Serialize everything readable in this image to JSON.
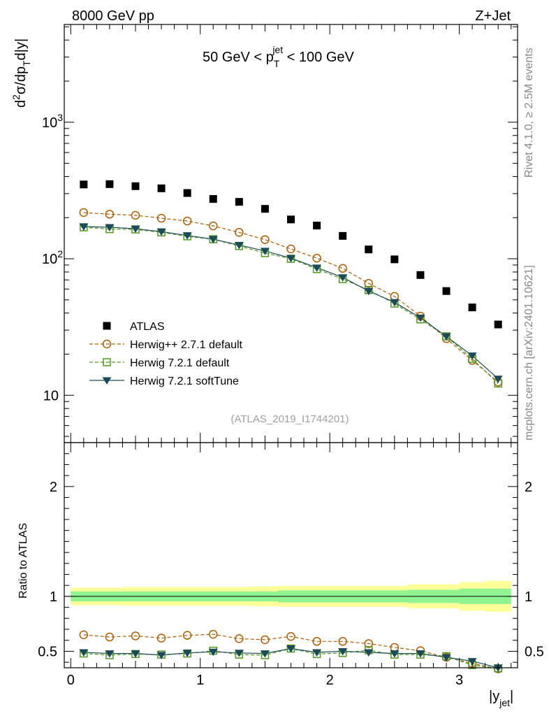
{
  "header": {
    "left_label": "8000 GeV pp",
    "right_label": "Z+Jet"
  },
  "side_labels": {
    "rivet": "Rivet 4.1.0, ≥ 2.5M events",
    "mcplots": "mcplots.cern.ch [arXiv:2401.10621]"
  },
  "chart_data": [
    {
      "type": "scatter",
      "panel": "main",
      "title": "50 GeV < p_T^jet < 100 GeV",
      "title_parts": {
        "pre": "50 GeV < p",
        "sub": "T",
        "sup": "jet",
        "post": " < 100 GeV"
      },
      "ylabel": "d²σ/dp_T d|y|",
      "ylabel_parts": {
        "d1": "d",
        "sup2": "2",
        "mid": "σ/dp",
        "subT": "T",
        "tail": "d|y|"
      },
      "yscale": "log",
      "ylim": [
        4.5,
        5200
      ],
      "xlim": [
        -0.05,
        3.45
      ],
      "y_ticks": [
        {
          "value": 10,
          "label": "10"
        },
        {
          "value": 100,
          "label": "10",
          "exp": "2"
        },
        {
          "value": 1000,
          "label": "10",
          "exp": "3"
        }
      ],
      "watermark": "(ATLAS_2019_I1744201)",
      "x": [
        0.1,
        0.3,
        0.5,
        0.7,
        0.9,
        1.1,
        1.3,
        1.5,
        1.7,
        1.9,
        2.1,
        2.3,
        2.5,
        2.7,
        2.9,
        3.1,
        3.3
      ],
      "series": [
        {
          "name": "ATLAS",
          "legend": "ATLAS",
          "color": "#000000",
          "marker": "square-filled",
          "values": [
            350,
            352,
            340,
            328,
            303,
            274,
            261,
            232,
            194,
            175,
            147,
            117,
            99,
            76,
            58,
            44,
            33
          ]
        },
        {
          "name": "herwigpp",
          "legend": "Herwig++ 2.7.1 default",
          "color": "#b35c00",
          "marker": "circle-open",
          "dash": "dashed",
          "values": [
            218,
            212,
            208,
            198,
            189,
            174,
            156,
            138,
            118,
            101,
            85,
            66,
            53,
            38,
            26,
            18,
            12.5
          ]
        },
        {
          "name": "herwig721",
          "legend": "Herwig 7.2.1 default",
          "color": "#4c9a1a",
          "marker": "square-open",
          "dash": "dashed",
          "values": [
            170,
            165,
            164,
            156,
            146,
            139,
            124,
            110,
            100,
            84,
            71,
            59,
            47,
            36,
            27,
            18.5,
            12.2
          ]
        },
        {
          "name": "herwig721soft",
          "legend": "Herwig 7.2.1 softTune",
          "color": "#1c4a5c",
          "marker": "triangle-down-filled",
          "dash": "solid",
          "values": [
            172,
            170,
            166,
            158,
            148,
            139,
            126,
            114,
            101,
            86,
            73,
            58,
            48,
            37,
            27,
            19.5,
            13.2
          ]
        }
      ]
    },
    {
      "type": "line",
      "panel": "ratio",
      "ylabel": "Ratio to ATLAS",
      "xlabel": "|y_jet|",
      "xlabel_parts": {
        "pre": "|y",
        "sub": "jet",
        "post": "|"
      },
      "ylim": [
        0.35,
        2.4
      ],
      "xlim": [
        -0.05,
        3.45
      ],
      "y_ticks": [
        {
          "value": 0.5,
          "label": "0.5"
        },
        {
          "value": 1,
          "label": "1"
        },
        {
          "value": 2,
          "label": "2"
        }
      ],
      "x_ticks": [
        {
          "value": 0,
          "label": "0"
        },
        {
          "value": 1,
          "label": "1"
        },
        {
          "value": 2,
          "label": "2"
        },
        {
          "value": 3,
          "label": "3"
        }
      ],
      "x_edges": [
        0,
        0.2,
        0.4,
        0.6,
        0.8,
        1.0,
        1.2,
        1.4,
        1.6,
        1.8,
        2.0,
        2.2,
        2.4,
        2.6,
        2.8,
        3.0,
        3.2,
        3.4
      ],
      "band_inner": [
        0.045,
        0.045,
        0.045,
        0.045,
        0.045,
        0.045,
        0.045,
        0.045,
        0.055,
        0.055,
        0.055,
        0.055,
        0.055,
        0.06,
        0.06,
        0.07,
        0.07
      ],
      "band_outer": [
        0.08,
        0.08,
        0.085,
        0.085,
        0.085,
        0.085,
        0.085,
        0.09,
        0.095,
        0.095,
        0.095,
        0.095,
        0.095,
        0.11,
        0.11,
        0.13,
        0.14
      ],
      "band_colors": {
        "inner": "#90f590",
        "outer": "#ffff99"
      },
      "x": [
        0.1,
        0.3,
        0.5,
        0.7,
        0.9,
        1.1,
        1.3,
        1.5,
        1.7,
        1.9,
        2.1,
        2.3,
        2.5,
        2.7,
        2.9,
        3.1,
        3.3
      ],
      "series": [
        {
          "name": "herwigpp",
          "color": "#b35c00",
          "marker": "circle-open",
          "dash": "dashed",
          "values": [
            0.65,
            0.63,
            0.64,
            0.62,
            0.645,
            0.655,
            0.615,
            0.605,
            0.635,
            0.59,
            0.59,
            0.57,
            0.535,
            0.505,
            0.445,
            0.39,
            0.34
          ]
        },
        {
          "name": "herwig721",
          "color": "#4c9a1a",
          "marker": "square-open",
          "dash": "dashed",
          "values": [
            0.48,
            0.465,
            0.475,
            0.47,
            0.48,
            0.505,
            0.47,
            0.465,
            0.525,
            0.475,
            0.485,
            0.51,
            0.47,
            0.47,
            0.455,
            0.375,
            0.345
          ]
        },
        {
          "name": "herwig721soft",
          "color": "#1c4a5c",
          "marker": "triangle-down-filled",
          "dash": "solid",
          "values": [
            0.49,
            0.48,
            0.48,
            0.465,
            0.485,
            0.495,
            0.485,
            0.48,
            0.525,
            0.49,
            0.5,
            0.49,
            0.48,
            0.48,
            0.445,
            0.41,
            0.35
          ]
        }
      ]
    }
  ]
}
